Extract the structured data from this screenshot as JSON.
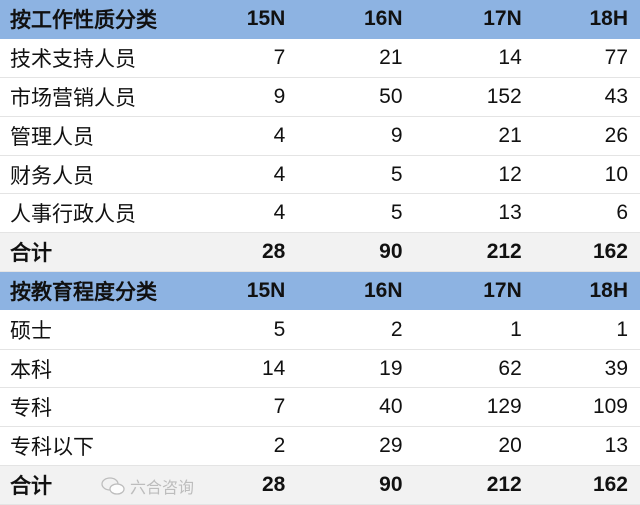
{
  "sections": [
    {
      "header": [
        "按工作性质分类",
        "15N",
        "16N",
        "17N",
        "18H"
      ],
      "rows": [
        [
          "技术支持人员",
          "7",
          "21",
          "14",
          "77"
        ],
        [
          "市场营销人员",
          "9",
          "50",
          "152",
          "43"
        ],
        [
          "管理人员",
          "4",
          "9",
          "21",
          "26"
        ],
        [
          "财务人员",
          "4",
          "5",
          "12",
          "10"
        ],
        [
          "人事行政人员",
          "4",
          "5",
          "13",
          "6"
        ]
      ],
      "total": [
        "合计",
        "28",
        "90",
        "212",
        "162"
      ]
    },
    {
      "header": [
        "按教育程度分类",
        "15N",
        "16N",
        "17N",
        "18H"
      ],
      "rows": [
        [
          "硕士",
          "5",
          "2",
          "1",
          "1"
        ],
        [
          "本科",
          "14",
          "19",
          "62",
          "39"
        ],
        [
          "专科",
          "7",
          "40",
          "129",
          "109"
        ],
        [
          "专科以下",
          "2",
          "29",
          "20",
          "13"
        ]
      ],
      "total": [
        "合计",
        "28",
        "90",
        "212",
        "162"
      ]
    }
  ],
  "watermark": {
    "text": "六合咨询",
    "icon": "wechat-icon"
  },
  "colors": {
    "header_bg": "#8db3e2",
    "total_bg": "#f2f2f2"
  }
}
